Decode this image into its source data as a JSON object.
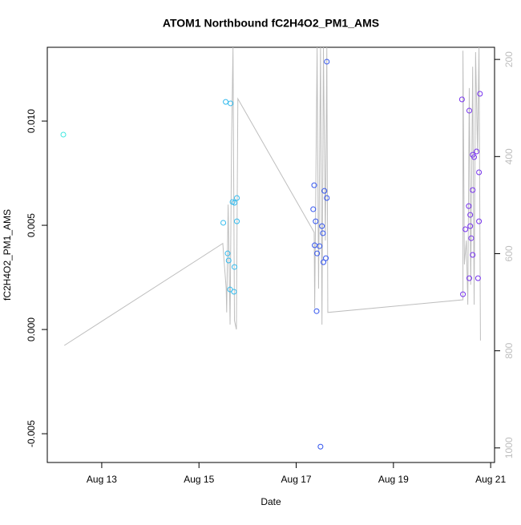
{
  "chart_data": {
    "type": "scatter",
    "title": "ATOM1 Northbound fC2H4O2_PM1_AMS",
    "xlabel": "Date",
    "ylabel": "fC2H4O2_PM1_AMS",
    "xlim": [
      11.88,
      21.08
    ],
    "xticks": [
      {
        "value": 13,
        "label": "Aug 13"
      },
      {
        "value": 15,
        "label": "Aug 15"
      },
      {
        "value": 17,
        "label": "Aug 17"
      },
      {
        "value": 19,
        "label": "Aug 19"
      },
      {
        "value": 21,
        "label": "Aug 21"
      }
    ],
    "ylim": [
      -0.00638,
      0.01354
    ],
    "yticks": [
      -0.005,
      {
        "value": 0,
        "label": "0.000"
      },
      0.005,
      {
        "value": 0.01,
        "label": "0.010"
      }
    ],
    "y2lim": [
      1030,
      175
    ],
    "y2ticks": [
      200,
      400,
      600,
      800,
      1000
    ],
    "y2color": "#bebebe",
    "series": [
      {
        "type": "point",
        "color": "#3de8e0",
        "x": [
          12.21
        ],
        "values": [
          0.00935
        ]
      },
      {
        "type": "point",
        "color": "#33bbee",
        "x": [
          15.55,
          15.65,
          15.5,
          15.69,
          15.73,
          15.78,
          15.78,
          15.59,
          15.61,
          15.73,
          15.64,
          15.72
        ],
        "values": [
          0.01092,
          0.01085,
          0.00512,
          0.00612,
          0.00608,
          0.00631,
          0.00519,
          0.00365,
          0.00331,
          0.003,
          0.00192,
          0.00181
        ]
      },
      {
        "type": "point",
        "color": "#3355ee",
        "x": [
          17.63,
          17.37,
          17.58,
          17.63,
          17.35,
          17.4,
          17.53,
          17.55,
          17.38,
          17.48,
          17.43,
          17.61,
          17.56,
          17.42,
          17.5
        ],
        "values": [
          0.01285,
          0.00692,
          0.00665,
          0.00631,
          0.00577,
          0.00519,
          0.00496,
          0.00462,
          0.00404,
          0.004,
          0.00365,
          0.00342,
          0.00323,
          0.00088,
          -0.00562
        ]
      },
      {
        "type": "point",
        "color": "#7733ee",
        "x": [
          20.41,
          20.78,
          20.56,
          20.63,
          20.66,
          20.71,
          20.76,
          20.63,
          20.55,
          20.58,
          20.76,
          20.58,
          20.48,
          20.6,
          20.63,
          20.56,
          20.74,
          20.43
        ],
        "values": [
          0.01104,
          0.01131,
          0.0105,
          0.00838,
          0.00827,
          0.00854,
          0.00754,
          0.00669,
          0.00592,
          0.0055,
          0.00519,
          0.00496,
          0.00481,
          0.00438,
          0.00358,
          0.00246,
          0.00246,
          0.00169
        ]
      },
      {
        "type": "line",
        "axis": "y2",
        "color": "#bebebe",
        "x": [
          12.23,
          15.49,
          15.56,
          15.57,
          15.6,
          15.64,
          15.67,
          15.7,
          15.73,
          15.77,
          15.8,
          17.37,
          17.38,
          17.43,
          17.46,
          17.5,
          17.53,
          17.56,
          17.6,
          17.63,
          17.65,
          20.43,
          20.43,
          20.46,
          20.5,
          20.53,
          20.56,
          20.59,
          20.63,
          20.66,
          20.69,
          20.73,
          20.76,
          20.79
        ],
        "values": [
          789,
          579,
          672,
          721,
          499,
          746,
          375,
          175,
          738,
          756,
          281,
          556,
          713,
          175,
          672,
          175,
          746,
          175,
          573,
          175,
          721,
          695,
          182,
          622,
          573,
          705,
          259,
          664,
          215,
          705,
          185,
          391,
          175,
          779
        ]
      }
    ]
  }
}
